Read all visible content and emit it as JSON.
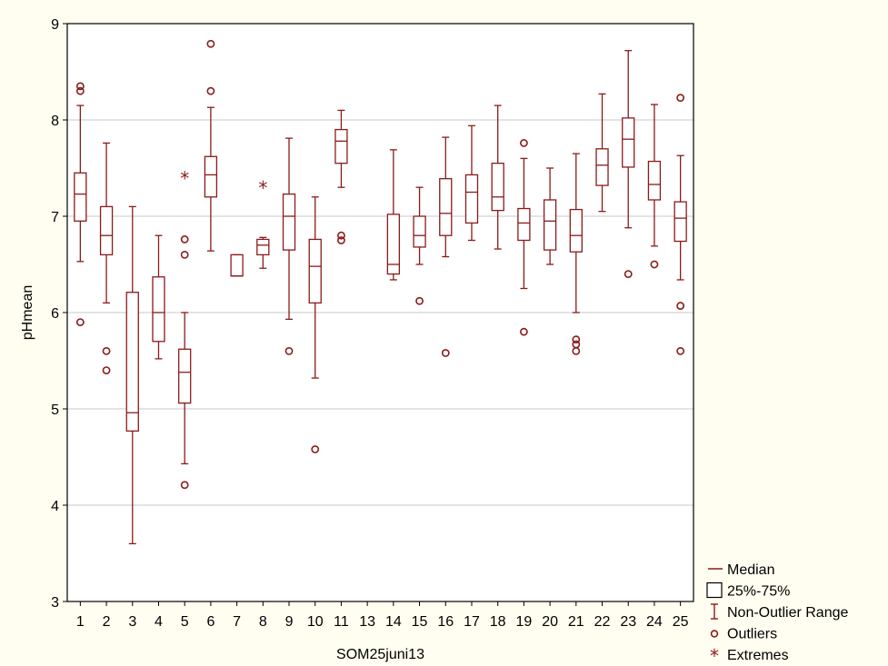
{
  "colors": {
    "background": "#fffef0",
    "plot_background": "#ffffff",
    "grid": "#c8c8c8",
    "mark": "#8b1a1a",
    "axis": "#000000"
  },
  "chart_data": {
    "type": "box",
    "xlabel": "SOM25juni13",
    "ylabel": "pHmean",
    "ylim": [
      3,
      9
    ],
    "yticks": [
      3,
      4,
      5,
      6,
      7,
      8,
      9
    ],
    "grid": "horizontal",
    "legend_position": "bottom-right",
    "categories": [
      "1",
      "2",
      "3",
      "4",
      "5",
      "6",
      "7",
      "8",
      "9",
      "10",
      "11",
      "13",
      "14",
      "15",
      "16",
      "17",
      "18",
      "19",
      "20",
      "21",
      "22",
      "23",
      "24",
      "25"
    ],
    "boxes": [
      {
        "category": "1",
        "q1": 6.95,
        "median": 7.23,
        "q3": 7.45,
        "whisker_low": 6.53,
        "whisker_high": 8.15,
        "outliers": [
          5.9,
          8.3,
          8.35
        ],
        "extremes": []
      },
      {
        "category": "2",
        "q1": 6.6,
        "median": 6.8,
        "q3": 7.1,
        "whisker_low": 6.1,
        "whisker_high": 7.76,
        "outliers": [
          5.6,
          5.4
        ],
        "extremes": []
      },
      {
        "category": "3",
        "q1": 4.77,
        "median": 4.96,
        "q3": 6.21,
        "whisker_low": 3.6,
        "whisker_high": 7.1,
        "outliers": [],
        "extremes": []
      },
      {
        "category": "4",
        "q1": 5.7,
        "median": 6.0,
        "q3": 6.37,
        "whisker_low": 5.52,
        "whisker_high": 6.8,
        "outliers": [],
        "extremes": []
      },
      {
        "category": "5",
        "q1": 5.06,
        "median": 5.38,
        "q3": 5.62,
        "whisker_low": 4.43,
        "whisker_high": 6.0,
        "outliers": [
          4.21,
          6.6,
          6.76
        ],
        "extremes": [
          7.4
        ]
      },
      {
        "category": "6",
        "q1": 7.2,
        "median": 7.43,
        "q3": 7.62,
        "whisker_low": 6.64,
        "whisker_high": 8.13,
        "outliers": [
          8.3,
          8.79
        ],
        "extremes": []
      },
      {
        "category": "7",
        "q1": 6.38,
        "median": 6.38,
        "q3": 6.6,
        "whisker_low": 6.38,
        "whisker_high": 6.6,
        "outliers": [],
        "extremes": []
      },
      {
        "category": "8",
        "q1": 6.6,
        "median": 6.7,
        "q3": 6.76,
        "whisker_low": 6.46,
        "whisker_high": 6.78,
        "outliers": [],
        "extremes": [
          7.3
        ]
      },
      {
        "category": "9",
        "q1": 6.65,
        "median": 7.0,
        "q3": 7.23,
        "whisker_low": 5.93,
        "whisker_high": 7.81,
        "outliers": [
          5.6
        ],
        "extremes": []
      },
      {
        "category": "10",
        "q1": 6.1,
        "median": 6.48,
        "q3": 6.76,
        "whisker_low": 5.32,
        "whisker_high": 7.2,
        "outliers": [
          4.58
        ],
        "extremes": []
      },
      {
        "category": "11",
        "q1": 7.55,
        "median": 7.78,
        "q3": 7.9,
        "whisker_low": 7.3,
        "whisker_high": 8.1,
        "outliers": [
          6.8,
          6.75
        ],
        "extremes": []
      },
      {
        "category": "13"
      },
      {
        "category": "14",
        "q1": 6.4,
        "median": 6.5,
        "q3": 7.02,
        "whisker_low": 6.34,
        "whisker_high": 7.69,
        "outliers": [],
        "extremes": []
      },
      {
        "category": "15",
        "q1": 6.68,
        "median": 6.8,
        "q3": 7.0,
        "whisker_low": 6.5,
        "whisker_high": 7.3,
        "outliers": [
          6.12
        ],
        "extremes": []
      },
      {
        "category": "16",
        "q1": 6.8,
        "median": 7.03,
        "q3": 7.39,
        "whisker_low": 6.58,
        "whisker_high": 7.82,
        "outliers": [
          5.58
        ],
        "extremes": []
      },
      {
        "category": "17",
        "q1": 6.93,
        "median": 7.25,
        "q3": 7.43,
        "whisker_low": 6.75,
        "whisker_high": 7.94,
        "outliers": [],
        "extremes": []
      },
      {
        "category": "18",
        "q1": 7.06,
        "median": 7.2,
        "q3": 7.55,
        "whisker_low": 6.66,
        "whisker_high": 8.15,
        "outliers": [],
        "extremes": []
      },
      {
        "category": "19",
        "q1": 6.75,
        "median": 6.93,
        "q3": 7.08,
        "whisker_low": 6.25,
        "whisker_high": 7.6,
        "outliers": [
          5.8,
          7.76
        ],
        "extremes": []
      },
      {
        "category": "20",
        "q1": 6.65,
        "median": 6.95,
        "q3": 7.17,
        "whisker_low": 6.5,
        "whisker_high": 7.5,
        "outliers": [],
        "extremes": []
      },
      {
        "category": "21",
        "q1": 6.63,
        "median": 6.8,
        "q3": 7.07,
        "whisker_low": 6.0,
        "whisker_high": 7.65,
        "outliers": [
          5.6,
          5.67,
          5.72
        ],
        "extremes": []
      },
      {
        "category": "22",
        "q1": 7.32,
        "median": 7.53,
        "q3": 7.7,
        "whisker_low": 7.05,
        "whisker_high": 8.27,
        "outliers": [],
        "extremes": []
      },
      {
        "category": "23",
        "q1": 7.51,
        "median": 7.8,
        "q3": 8.02,
        "whisker_low": 6.88,
        "whisker_high": 8.72,
        "outliers": [
          6.4
        ],
        "extremes": []
      },
      {
        "category": "24",
        "q1": 7.17,
        "median": 7.33,
        "q3": 7.57,
        "whisker_low": 6.69,
        "whisker_high": 8.16,
        "outliers": [
          6.5
        ],
        "extremes": []
      },
      {
        "category": "25",
        "q1": 6.74,
        "median": 6.98,
        "q3": 7.15,
        "whisker_low": 6.34,
        "whisker_high": 7.63,
        "outliers": [
          5.6,
          6.07,
          8.23
        ],
        "extremes": []
      }
    ],
    "legend": [
      {
        "symbol": "median",
        "label": "Median"
      },
      {
        "symbol": "box",
        "label": "25%-75%"
      },
      {
        "symbol": "range",
        "label": "Non-Outlier Range"
      },
      {
        "symbol": "outlier",
        "label": "Outliers"
      },
      {
        "symbol": "extreme",
        "label": "Extremes"
      }
    ]
  }
}
